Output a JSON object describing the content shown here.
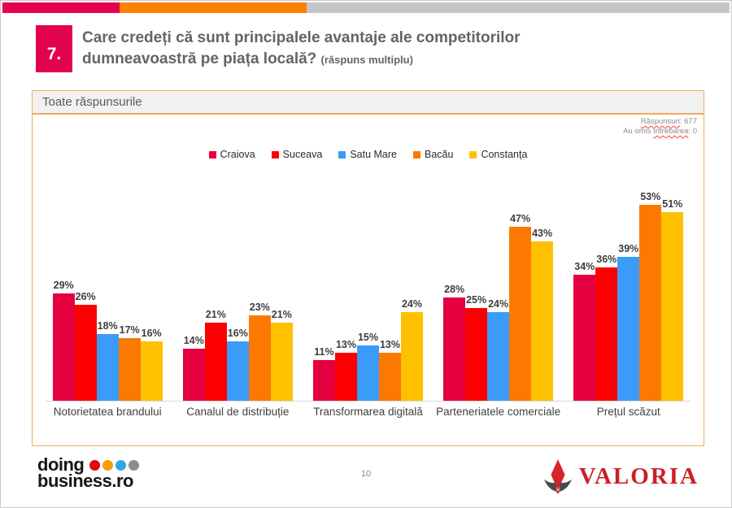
{
  "slide": {
    "question_number": "7.",
    "title_line1": "Care credeți că sunt principalele avantaje ale competitorilor",
    "title_line2": "dumneavoastră pe piața locală?",
    "title_note": "(răspuns multiplu)",
    "filter_bar_label": "Toate răspunsurile",
    "responses_word": "Răspunsuri",
    "responses_value": ": 677",
    "omitted_prefix": "Au omis ",
    "omitted_word": "întrebarea",
    "omitted_value": ": 0",
    "page_number": "10"
  },
  "footer": {
    "left_logo_line1": "doing",
    "left_logo_line2": "business.ro",
    "left_logo_dot_colors": [
      "#E30613",
      "#F59C00",
      "#31A8E0",
      "#8C8C8C"
    ],
    "right_logo_text": "VALORIA",
    "right_logo_color": "#CB2026"
  },
  "theme": {
    "strip_crimson": "#E2034D",
    "strip_orange": "#FA8200",
    "strip_gray": "#C6C6C6",
    "number_box_bg": "#E2034D",
    "title_color": "#646464",
    "panel_border": "#F0AA5E"
  },
  "chart_data": {
    "type": "bar",
    "title": "",
    "categories": [
      "Notorietatea brandului",
      "Canalul de distribuție",
      "Transformarea digitală",
      "Parteneriatele comerciale",
      "Prețul scăzut"
    ],
    "series": [
      {
        "name": "Craiova",
        "color": "#E4003E",
        "values": [
          29,
          14,
          11,
          28,
          34
        ]
      },
      {
        "name": "Suceava",
        "color": "#FA0000",
        "values": [
          26,
          21,
          13,
          25,
          36
        ]
      },
      {
        "name": "Satu Mare",
        "color": "#3B9BF9",
        "values": [
          18,
          16,
          15,
          24,
          39
        ]
      },
      {
        "name": "Bacău",
        "color": "#FB7900",
        "values": [
          17,
          23,
          13,
          47,
          53
        ]
      },
      {
        "name": "Constanța",
        "color": "#FFC000",
        "values": [
          16,
          21,
          24,
          43,
          51
        ]
      }
    ],
    "value_suffix": "%",
    "xlabel": "",
    "ylabel": "",
    "ylim": [
      0,
      55
    ],
    "grid": false,
    "legend_position": "top",
    "data_labels": true
  }
}
